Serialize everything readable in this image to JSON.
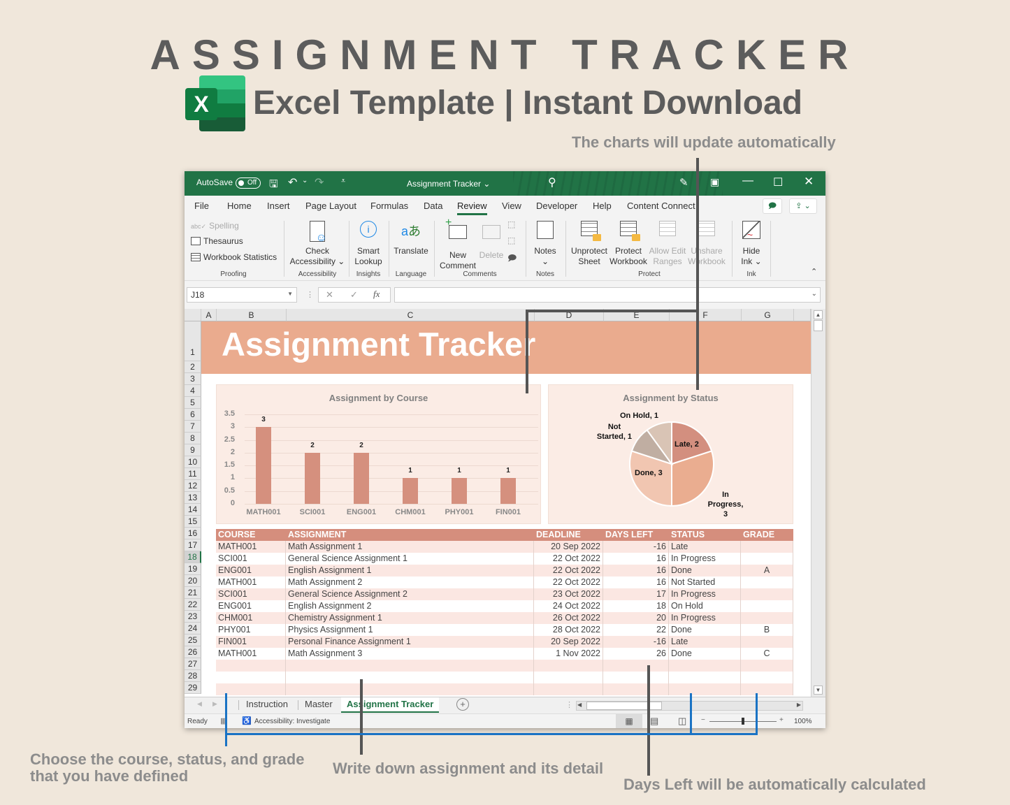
{
  "hero": {
    "title": "ASSIGNMENT TRACKER",
    "subtitle": "Excel Template | Instant Download",
    "logo_letter": "X"
  },
  "annotations": {
    "charts": "The charts will update automatically",
    "choose": "Choose the course, status, and grade that you have defined",
    "write": "Write down assignment and its detail",
    "days_left": "Days Left will be automatically calculated"
  },
  "titlebar": {
    "autosave_label": "AutoSave",
    "autosave_state": "Off",
    "doc_title": "Assignment Tracker ⌄"
  },
  "menu": {
    "items": [
      "File",
      "Home",
      "Insert",
      "Page Layout",
      "Formulas",
      "Data",
      "Review",
      "View",
      "Developer",
      "Help",
      "Content Connect"
    ],
    "active": "Review"
  },
  "ribbon": {
    "proofing": {
      "spelling": "Spelling",
      "thesaurus": "Thesaurus",
      "workbook_stats": "Workbook Statistics",
      "group": "Proofing"
    },
    "accessibility": {
      "check_line1": "Check",
      "check_line2": "Accessibility ⌄",
      "group": "Accessibility"
    },
    "insights": {
      "line1": "Smart",
      "line2": "Lookup",
      "group": "Insights"
    },
    "language": {
      "translate": "Translate",
      "group": "Language"
    },
    "comments": {
      "new_line1": "New",
      "new_line2": "Comment",
      "delete": "Delete",
      "group": "Comments"
    },
    "notes": {
      "notes": "Notes",
      "chevron": "⌄",
      "group": "Notes"
    },
    "protect": {
      "unprotect_line1": "Unprotect",
      "unprotect_line2": "Sheet",
      "protect_line1": "Protect",
      "protect_line2": "Workbook",
      "allow_line1": "Allow Edit",
      "allow_line2": "Ranges",
      "unshare_line1": "Unshare",
      "unshare_line2": "Workbook",
      "group": "Protect"
    },
    "ink": {
      "line1": "Hide",
      "line2": "Ink ⌄",
      "group": "Ink"
    }
  },
  "formula_bar": {
    "name_box": "J18",
    "fx": "fx",
    "cancel": "✕",
    "enter": "✓",
    "value": ""
  },
  "columns": [
    "A",
    "B",
    "C",
    "D",
    "E",
    "F",
    "G"
  ],
  "rows": [
    "1",
    "2",
    "3",
    "4",
    "5",
    "6",
    "7",
    "8",
    "9",
    "10",
    "11",
    "12",
    "13",
    "14",
    "15",
    "16",
    "17",
    "18",
    "19",
    "20",
    "21",
    "22",
    "23",
    "24",
    "25",
    "26",
    "27",
    "28",
    "29"
  ],
  "selected_row": "18",
  "sheet": {
    "banner_title": "Assignment Tracker",
    "table": {
      "headers": [
        "COURSE",
        "ASSIGNMENT",
        "DEADLINE",
        "DAYS LEFT",
        "STATUS",
        "GRADE"
      ],
      "rows": [
        [
          "MATH001",
          "Math Assignment 1",
          "20 Sep 2022",
          "-16",
          "Late",
          ""
        ],
        [
          "SCI001",
          "General Science Assignment 1",
          "22 Oct 2022",
          "16",
          "In Progress",
          ""
        ],
        [
          "ENG001",
          "English Assignment 1",
          "22 Oct 2022",
          "16",
          "Done",
          "A"
        ],
        [
          "MATH001",
          "Math Assignment 2",
          "22 Oct 2022",
          "16",
          "Not Started",
          ""
        ],
        [
          "SCI001",
          "General Science Assignment 2",
          "23 Oct 2022",
          "17",
          "In Progress",
          ""
        ],
        [
          "ENG001",
          "English Assignment 2",
          "24 Oct 2022",
          "18",
          "On Hold",
          ""
        ],
        [
          "CHM001",
          "Chemistry Assignment 1",
          "26 Oct 2022",
          "20",
          "In Progress",
          ""
        ],
        [
          "PHY001",
          "Physics Assignment 1",
          "28 Oct 2022",
          "22",
          "Done",
          "B"
        ],
        [
          "FIN001",
          "Personal Finance Assignment 1",
          "20 Sep 2022",
          "-16",
          "Late",
          ""
        ],
        [
          "MATH001",
          "Math Assignment 3",
          "1 Nov 2022",
          "26",
          "Done",
          "C"
        ],
        [
          "",
          "",
          "",
          "",
          "",
          ""
        ],
        [
          "",
          "",
          "",
          "",
          "",
          ""
        ],
        [
          "",
          "",
          "",
          "",
          "",
          ""
        ]
      ]
    }
  },
  "chart_data": [
    {
      "type": "bar",
      "title": "Assignment by Course",
      "categories": [
        "MATH001",
        "SCI001",
        "ENG001",
        "CHM001",
        "PHY001",
        "FIN001"
      ],
      "values": [
        3,
        2,
        2,
        1,
        1,
        1
      ],
      "yticks": [
        "3.5",
        "3",
        "2.5",
        "2",
        "1.5",
        "1",
        "0.5",
        "0"
      ],
      "ylim": [
        0,
        3.5
      ],
      "xlabel": "",
      "ylabel": "",
      "grid": true,
      "color": "#d5907e"
    },
    {
      "type": "pie",
      "title": "Assignment by Status",
      "labels": [
        "Late",
        "In Progress",
        "Done",
        "Not Started",
        "On Hold"
      ],
      "values": [
        2,
        3,
        3,
        1,
        1
      ],
      "display_labels": [
        "Late, 2",
        "In Progress, 3",
        "Done, 3",
        "Not Started, 1",
        "On Hold, 1"
      ],
      "colors": [
        "#d38f7f",
        "#eaad90",
        "#f1c6b1",
        "#c0aea2",
        "#d9c4b5"
      ]
    }
  ],
  "sheet_tabs": [
    "Instruction",
    "Master",
    "Assignment Tracker"
  ],
  "active_tab": "Assignment Tracker",
  "status": {
    "ready": "Ready",
    "accessibility": "Accessibility: Investigate",
    "zoom": "100%"
  }
}
